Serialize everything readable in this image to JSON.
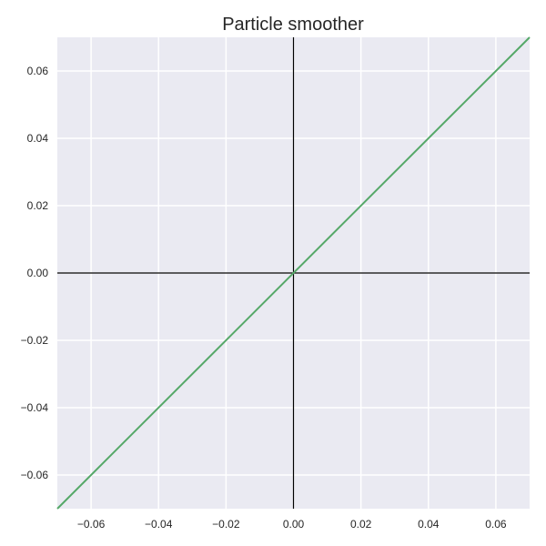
{
  "chart_data": {
    "type": "line",
    "title": "Particle smoother",
    "xlabel": "",
    "ylabel": "",
    "xlim": [
      -0.07,
      0.07
    ],
    "ylim": [
      -0.07,
      0.07
    ],
    "grid": true,
    "xticks": [
      -0.06,
      -0.04,
      -0.02,
      0.0,
      0.02,
      0.04,
      0.06
    ],
    "yticks": [
      -0.06,
      -0.04,
      -0.02,
      0.0,
      0.02,
      0.04,
      0.06
    ],
    "xtick_labels": [
      "−0.06",
      "−0.04",
      "−0.02",
      "0.00",
      "0.02",
      "0.04",
      "0.06"
    ],
    "ytick_labels": [
      "−0.06",
      "−0.04",
      "−0.02",
      "0.00",
      "0.02",
      "0.04",
      "0.06"
    ],
    "reference_lines": {
      "x": 0,
      "y": 0,
      "color": "#000000"
    },
    "series": [
      {
        "x": [
          -0.07,
          0.07
        ],
        "y": [
          -0.07,
          0.07
        ],
        "color": "#55a868"
      }
    ],
    "colors": {
      "plot_background": "#eaeaf2",
      "grid": "#ffffff",
      "text": "#262626"
    }
  }
}
